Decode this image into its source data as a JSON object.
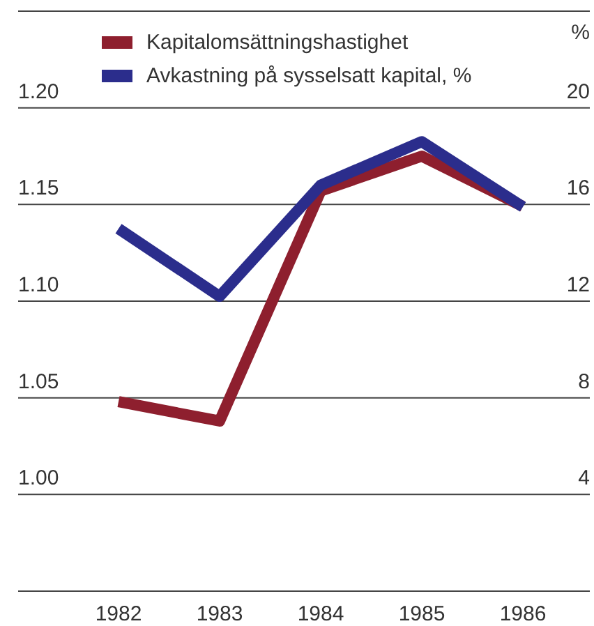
{
  "chart_data": {
    "type": "line",
    "categories": [
      "1982",
      "1983",
      "1984",
      "1985",
      "1986"
    ],
    "series": [
      {
        "name": "Kapitalomsättningshastighet",
        "color": "#8e1f2e",
        "values": [
          1.048,
          1.038,
          1.157,
          1.175,
          1.149
        ]
      },
      {
        "name": "Avkastning på sysselsatt kapital, %",
        "color": "#2b2d8c",
        "values": [
          15,
          12.2,
          16.8,
          18.6,
          15.9
        ],
        "axis": "y2"
      }
    ],
    "ylim": [
      0.95,
      1.25
    ],
    "yticks": [
      {
        "value": 0.95,
        "label": null
      },
      {
        "value": 1.0,
        "label": "1.00"
      },
      {
        "value": 1.05,
        "label": "1.05"
      },
      {
        "value": 1.1,
        "label": "1.10"
      },
      {
        "value": 1.15,
        "label": "1.15"
      },
      {
        "value": 1.2,
        "label": "1.20"
      },
      {
        "value": 1.25,
        "label": null
      }
    ],
    "y2lim": [
      0,
      24
    ],
    "y2ticks": [
      4,
      8,
      12,
      16,
      20
    ],
    "y2label": "%",
    "grid": "y",
    "legend": "top left",
    "line_style": "solid"
  }
}
